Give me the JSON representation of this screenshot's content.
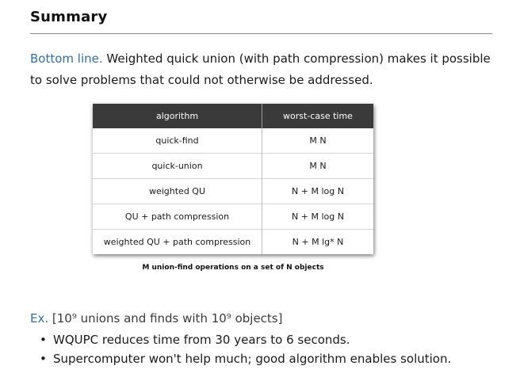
{
  "title": "Summary",
  "bottom_line": {
    "label": "Bottom line.",
    "text": "Weighted quick union (with path compression) makes it possible to solve problems that could not otherwise be addressed."
  },
  "table": {
    "headers": [
      "algorithm",
      "worst-case time"
    ],
    "rows": [
      [
        "quick-find",
        "M N"
      ],
      [
        "quick-union",
        "M N"
      ],
      [
        "weighted QU",
        "N + M log N"
      ],
      [
        "QU + path compression",
        "N + M log N"
      ],
      [
        "weighted QU + path compression",
        "N + M lg* N"
      ]
    ],
    "caption": "M union-find operations on a set of N objects"
  },
  "example": {
    "label": "Ex.",
    "text": "[10⁹ unions and finds with 10⁹ objects]",
    "bullets": [
      "WQUPC reduces time from 30 years to 6 seconds.",
      "Supercomputer won't help much; good algorithm enables solution."
    ]
  },
  "colors": {
    "accent": "#2f6ea6",
    "table_header_bg": "#3a3a3a"
  }
}
